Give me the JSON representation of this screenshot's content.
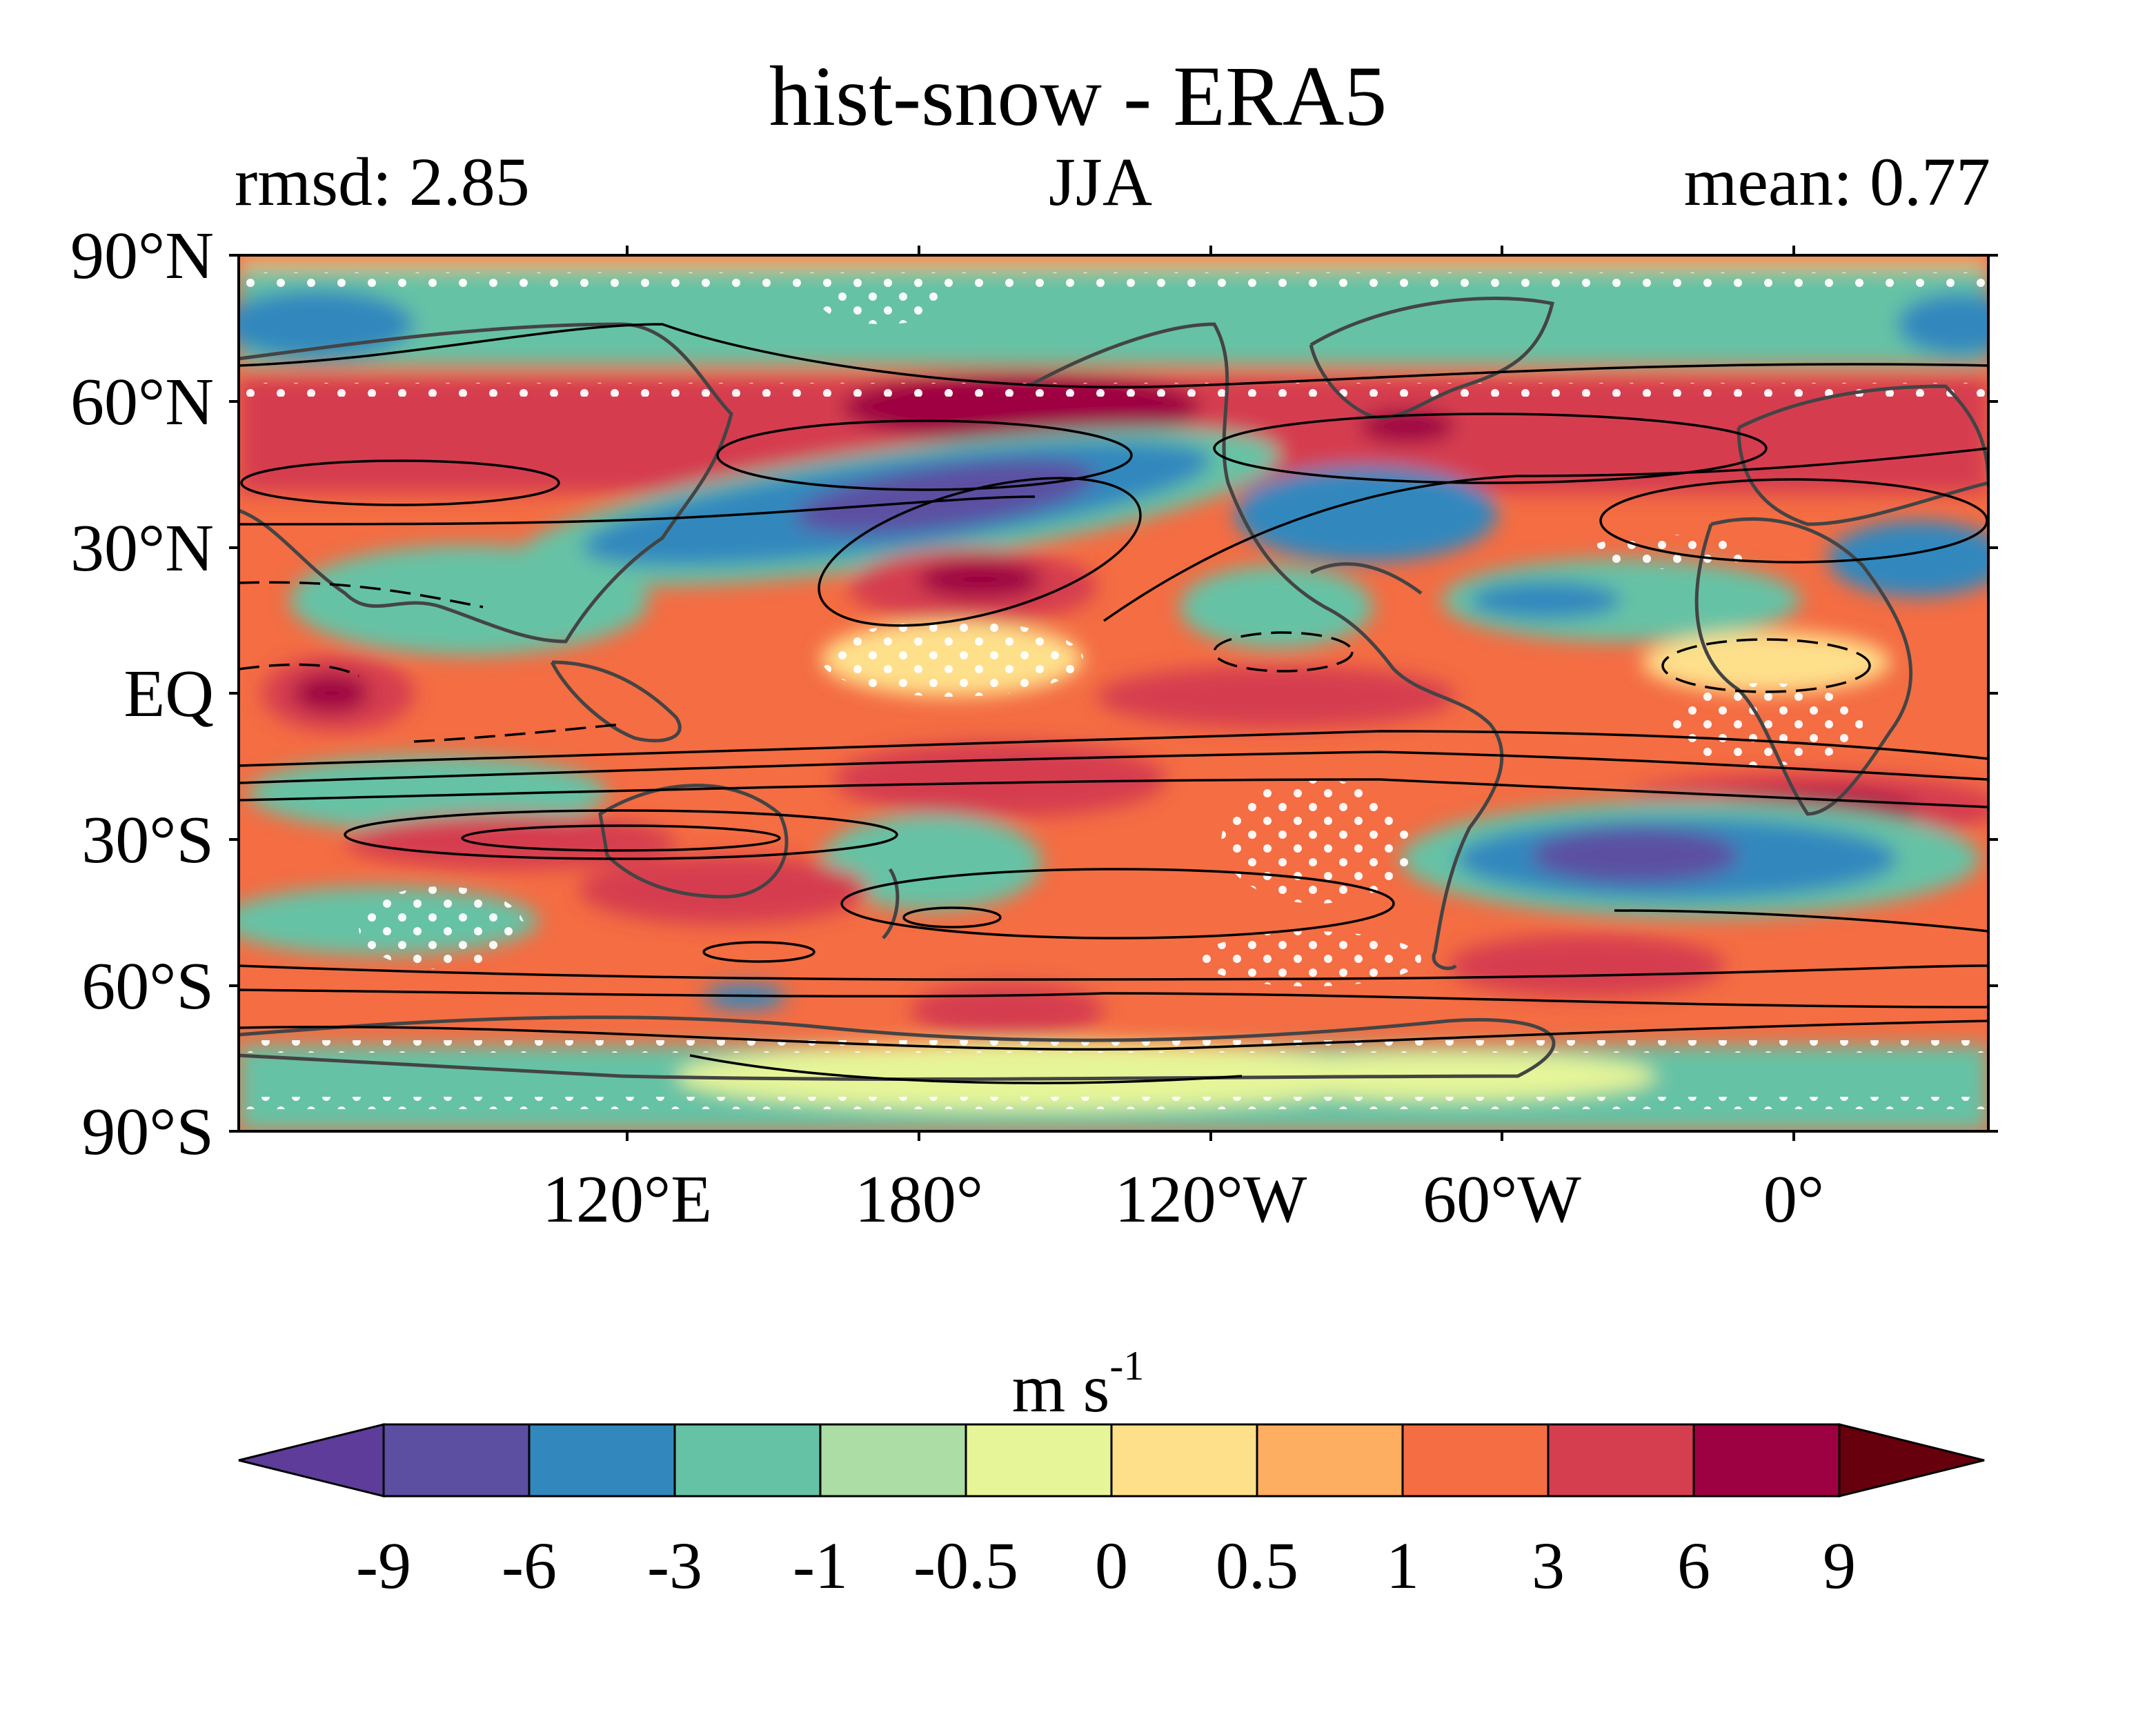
{
  "title": "hist-snow - ERA5",
  "subtitle_left": "rmsd: 2.85",
  "subtitle_center": "JJA",
  "subtitle_right": "mean: 0.77",
  "y_ticks": [
    "90°N",
    "60°N",
    "30°N",
    "EQ",
    "30°S",
    "60°S",
    "90°S"
  ],
  "x_ticks": [
    "120°E",
    "180°",
    "120°W",
    "60°W",
    "0°"
  ],
  "colorbar": {
    "label": "m s",
    "label_superscript": "-1",
    "tick_labels": [
      "-9",
      "-6",
      "-3",
      "-1",
      "-0.5",
      "0",
      "0.5",
      "1",
      "3",
      "6",
      "9"
    ],
    "colors": [
      "#5e3c99",
      "#5c4fa2",
      "#3288bd",
      "#66c2a5",
      "#abdda4",
      "#e6f598",
      "#fee08b",
      "#fdae61",
      "#f46d43",
      "#d53e4f",
      "#9e0142",
      "#67000d"
    ]
  },
  "chart_data": {
    "type": "heatmap",
    "title": "hist-snow - ERA5",
    "season": "JJA",
    "rmsd": 2.85,
    "mean": 0.77,
    "units": "m s-1",
    "xlim_deg_east": [
      40,
      400
    ],
    "ylim_deg": [
      -90,
      90
    ],
    "levels": [
      -9,
      -6,
      -3,
      -1,
      -0.5,
      0,
      0.5,
      1,
      3,
      6,
      9
    ],
    "extend": "both",
    "stippling": "white dots",
    "overlay": "black contour lines (solid positive, dashed negative)"
  }
}
